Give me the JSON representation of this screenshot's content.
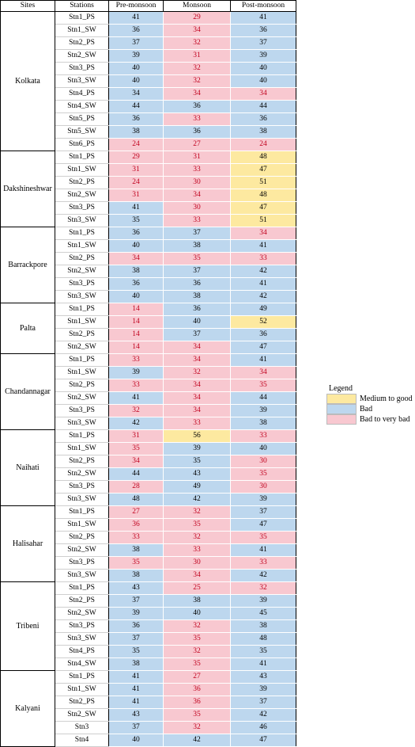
{
  "colors": {
    "good": "#fde9a0",
    "bad": "#bdd7ee",
    "very_bad": "#f8c8d0",
    "very_bad_text": "#c0001d"
  },
  "headers": [
    "Sites",
    "Stations",
    "Pre-monsoon",
    "Monsoon",
    "Post-monsoon"
  ],
  "sites": [
    {
      "name": "Kolkata",
      "rows": [
        {
          "station": "Stn1_PS",
          "pre": "41",
          "mon": "29",
          "post": "41",
          "c": [
            "b",
            "r",
            "b"
          ]
        },
        {
          "station": "Stn1_SW",
          "pre": "36",
          "mon": "34",
          "post": "36",
          "c": [
            "b",
            "r",
            "b"
          ]
        },
        {
          "station": "Stn2_PS",
          "pre": "37",
          "mon": "32",
          "post": "37",
          "c": [
            "b",
            "r",
            "b"
          ]
        },
        {
          "station": "Stn2_SW",
          "pre": "39",
          "mon": "31",
          "post": "39",
          "c": [
            "b",
            "r",
            "b"
          ]
        },
        {
          "station": "Stn3_PS",
          "pre": "40",
          "mon": "32",
          "post": "40",
          "c": [
            "b",
            "r",
            "b"
          ]
        },
        {
          "station": "Stn3_SW",
          "pre": "40",
          "mon": "32",
          "post": "40",
          "c": [
            "b",
            "r",
            "b"
          ]
        },
        {
          "station": "Stn4_PS",
          "pre": "34",
          "mon": "34",
          "post": "34",
          "c": [
            "b",
            "r",
            "r"
          ]
        },
        {
          "station": "Stn4_SW",
          "pre": "44",
          "mon": "36",
          "post": "44",
          "c": [
            "b",
            "b",
            "b"
          ]
        },
        {
          "station": "Stn5_PS",
          "pre": "36",
          "mon": "33",
          "post": "36",
          "c": [
            "b",
            "r",
            "b"
          ]
        },
        {
          "station": "Stn5_SW",
          "pre": "38",
          "mon": "36",
          "post": "38",
          "c": [
            "b",
            "b",
            "b"
          ]
        },
        {
          "station": "Stn6_PS",
          "pre": "24",
          "mon": "27",
          "post": "24",
          "c": [
            "r",
            "r",
            "r"
          ]
        }
      ]
    },
    {
      "name": "Dakshineshwar",
      "rows": [
        {
          "station": "Stn1_PS",
          "pre": "29",
          "mon": "31",
          "post": "48",
          "c": [
            "r",
            "r",
            "y"
          ]
        },
        {
          "station": "Stn1_SW",
          "pre": "31",
          "mon": "33",
          "post": "47",
          "c": [
            "r",
            "r",
            "y"
          ]
        },
        {
          "station": "Stn2_PS",
          "pre": "24",
          "mon": "30",
          "post": "51",
          "c": [
            "r",
            "r",
            "y"
          ]
        },
        {
          "station": "Stn2_SW",
          "pre": "31",
          "mon": "34",
          "post": "48",
          "c": [
            "r",
            "r",
            "y"
          ]
        },
        {
          "station": "Stn3_PS",
          "pre": "41",
          "mon": "30",
          "post": "47",
          "c": [
            "b",
            "r",
            "y"
          ]
        },
        {
          "station": "Stn3_SW",
          "pre": "35",
          "mon": "33",
          "post": "51",
          "c": [
            "b",
            "r",
            "y"
          ]
        }
      ]
    },
    {
      "name": "Barrackpore",
      "rows": [
        {
          "station": "Stn1_PS",
          "pre": "36",
          "mon": "37",
          "post": "34",
          "c": [
            "b",
            "b",
            "r"
          ]
        },
        {
          "station": "Stn1_SW",
          "pre": "40",
          "mon": "38",
          "post": "41",
          "c": [
            "b",
            "b",
            "b"
          ]
        },
        {
          "station": "Stn2_PS",
          "pre": "34",
          "mon": "35",
          "post": "33",
          "c": [
            "r",
            "r",
            "r"
          ]
        },
        {
          "station": "Stn2_SW",
          "pre": "38",
          "mon": "37",
          "post": "42",
          "c": [
            "b",
            "b",
            "b"
          ]
        },
        {
          "station": "Stn3_PS",
          "pre": "36",
          "mon": "36",
          "post": "41",
          "c": [
            "b",
            "b",
            "b"
          ]
        },
        {
          "station": "Stn3_SW",
          "pre": "40",
          "mon": "38",
          "post": "42",
          "c": [
            "b",
            "b",
            "b"
          ]
        }
      ]
    },
    {
      "name": "Palta",
      "rows": [
        {
          "station": "Stn1_PS",
          "pre": "14",
          "mon": "36",
          "post": "49",
          "c": [
            "r",
            "b",
            "b"
          ]
        },
        {
          "station": "Stn1_SW",
          "pre": "14",
          "mon": "40",
          "post": "52",
          "c": [
            "r",
            "b",
            "y"
          ]
        },
        {
          "station": "Stn2_PS",
          "pre": "14",
          "mon": "37",
          "post": "36",
          "c": [
            "r",
            "b",
            "b"
          ]
        },
        {
          "station": "Stn2_SW",
          "pre": "14",
          "mon": "34",
          "post": "47",
          "c": [
            "r",
            "r",
            "b"
          ]
        }
      ]
    },
    {
      "name": "Chandannagar",
      "rows": [
        {
          "station": "Stn1_PS",
          "pre": "33",
          "mon": "34",
          "post": "41",
          "c": [
            "r",
            "r",
            "b"
          ]
        },
        {
          "station": "Stn1_SW",
          "pre": "39",
          "mon": "32",
          "post": "34",
          "c": [
            "b",
            "r",
            "r"
          ]
        },
        {
          "station": "Stn2_PS",
          "pre": "33",
          "mon": "34",
          "post": "35",
          "c": [
            "r",
            "r",
            "r"
          ]
        },
        {
          "station": "Stn2_SW",
          "pre": "41",
          "mon": "34",
          "post": "44",
          "c": [
            "b",
            "r",
            "b"
          ]
        },
        {
          "station": "Stn3_PS",
          "pre": "32",
          "mon": "34",
          "post": "39",
          "c": [
            "r",
            "r",
            "b"
          ]
        },
        {
          "station": "Stn3_SW",
          "pre": "42",
          "mon": "33",
          "post": "38",
          "c": [
            "b",
            "r",
            "b"
          ]
        }
      ]
    },
    {
      "name": "Naihati",
      "rows": [
        {
          "station": "Stn1_PS",
          "pre": "31",
          "mon": "56",
          "post": "33",
          "c": [
            "r",
            "y",
            "r"
          ]
        },
        {
          "station": "Stn1_SW",
          "pre": "35",
          "mon": "39",
          "post": "40",
          "c": [
            "r",
            "b",
            "b"
          ]
        },
        {
          "station": "Stn2_PS",
          "pre": "34",
          "mon": "35",
          "post": "30",
          "c": [
            "r",
            "b",
            "r"
          ]
        },
        {
          "station": "Stn2_SW",
          "pre": "44",
          "mon": "43",
          "post": "35",
          "c": [
            "b",
            "b",
            "r"
          ]
        },
        {
          "station": "Stn3_PS",
          "pre": "28",
          "mon": "49",
          "post": "30",
          "c": [
            "r",
            "b",
            "r"
          ]
        },
        {
          "station": "Stn3_SW",
          "pre": "48",
          "mon": "42",
          "post": "39",
          "c": [
            "b",
            "b",
            "b"
          ]
        }
      ]
    },
    {
      "name": "Halisahar",
      "rows": [
        {
          "station": "Stn1_PS",
          "pre": "27",
          "mon": "32",
          "post": "37",
          "c": [
            "r",
            "r",
            "b"
          ]
        },
        {
          "station": "Stn1_SW",
          "pre": "36",
          "mon": "35",
          "post": "47",
          "c": [
            "r",
            "r",
            "b"
          ]
        },
        {
          "station": "Stn2_PS",
          "pre": "33",
          "mon": "32",
          "post": "35",
          "c": [
            "r",
            "r",
            "r"
          ]
        },
        {
          "station": "Stn2_SW",
          "pre": "38",
          "mon": "33",
          "post": "41",
          "c": [
            "b",
            "r",
            "b"
          ]
        },
        {
          "station": "Stn3_PS",
          "pre": "35",
          "mon": "30",
          "post": "33",
          "c": [
            "r",
            "r",
            "r"
          ]
        },
        {
          "station": "Stn3_SW",
          "pre": "38",
          "mon": "34",
          "post": "42",
          "c": [
            "b",
            "r",
            "b"
          ]
        }
      ]
    },
    {
      "name": "Tribeni",
      "rows": [
        {
          "station": "Stn1_PS",
          "pre": "43",
          "mon": "25",
          "post": "32",
          "c": [
            "b",
            "r",
            "r"
          ]
        },
        {
          "station": "Stn2_PS",
          "pre": "37",
          "mon": "38",
          "post": "39",
          "c": [
            "b",
            "b",
            "b"
          ]
        },
        {
          "station": "Stn2_SW",
          "pre": "39",
          "mon": "40",
          "post": "45",
          "c": [
            "b",
            "b",
            "b"
          ]
        },
        {
          "station": "Stn3_PS",
          "pre": "36",
          "mon": "32",
          "post": "38",
          "c": [
            "b",
            "r",
            "b"
          ]
        },
        {
          "station": "Stn3_SW",
          "pre": "37",
          "mon": "35",
          "post": "48",
          "c": [
            "b",
            "r",
            "b"
          ]
        },
        {
          "station": "Stn4_PS",
          "pre": "35",
          "mon": "32",
          "post": "35",
          "c": [
            "b",
            "r",
            "b"
          ]
        },
        {
          "station": "Stn4_SW",
          "pre": "38",
          "mon": "35",
          "post": "41",
          "c": [
            "b",
            "r",
            "b"
          ]
        }
      ]
    },
    {
      "name": "Kalyani",
      "rows": [
        {
          "station": "Stn1_PS",
          "pre": "41",
          "mon": "27",
          "post": "43",
          "c": [
            "b",
            "r",
            "b"
          ]
        },
        {
          "station": "Stn1_SW",
          "pre": "41",
          "mon": "36",
          "post": "39",
          "c": [
            "b",
            "r",
            "b"
          ]
        },
        {
          "station": "Stn2_PS",
          "pre": "41",
          "mon": "36",
          "post": "37",
          "c": [
            "b",
            "r",
            "b"
          ]
        },
        {
          "station": "Stn2_SW",
          "pre": "43",
          "mon": "35",
          "post": "42",
          "c": [
            "b",
            "r",
            "b"
          ]
        },
        {
          "station": "Stn3",
          "pre": "37",
          "mon": "32",
          "post": "46",
          "c": [
            "b",
            "r",
            "b"
          ]
        },
        {
          "station": "Stn4",
          "pre": "40",
          "mon": "42",
          "post": "47",
          "c": [
            "b",
            "b",
            "b"
          ]
        }
      ]
    }
  ],
  "legend": {
    "title": "Legend",
    "items": [
      {
        "label": "Medium to good",
        "color": "#fde9a0"
      },
      {
        "label": "Bad",
        "color": "#bdd7ee"
      },
      {
        "label": "Bad to very bad",
        "color": "#f8c8d0"
      }
    ]
  }
}
